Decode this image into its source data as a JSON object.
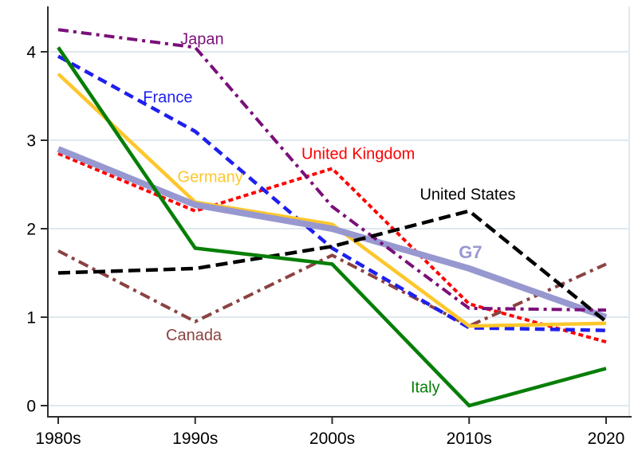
{
  "chart_data": {
    "type": "line",
    "title": "",
    "xlabel": "",
    "ylabel": "",
    "categories": [
      "1980s",
      "1990s",
      "2000s",
      "2010s",
      "2020"
    ],
    "yticks": [
      0,
      1,
      2,
      3,
      4
    ],
    "ylim": [
      0,
      4.5
    ],
    "grid": "horizontal-light-blue",
    "legend": "inline-series-labels",
    "gridline_color": "#dfe9ee",
    "axis_color": "#2e2e2e",
    "background_color": "#ffffff",
    "series": [
      {
        "name": "United Kingdom",
        "values": [
          2.85,
          2.2,
          2.68,
          1.15,
          0.72
        ],
        "color": "#fe0000",
        "dash": "shortdash",
        "width": 4,
        "label": {
          "x": 2.19,
          "y": 2.85,
          "bold": false,
          "size": 20
        }
      },
      {
        "name": "Canada",
        "values": [
          1.75,
          0.95,
          1.7,
          0.9,
          1.6
        ],
        "color": "#8b4242",
        "dash": "dashdot",
        "width": 4,
        "label": {
          "x": 0.99,
          "y": 0.8,
          "bold": false,
          "size": 20
        }
      },
      {
        "name": "France",
        "values": [
          3.95,
          3.1,
          1.78,
          0.88,
          0.85
        ],
        "color": "#1f1fee",
        "dash": "dash",
        "width": 4.5,
        "label": {
          "x": 0.8,
          "y": 3.49,
          "bold": false,
          "size": 20
        }
      },
      {
        "name": "Germany",
        "values": [
          3.75,
          2.3,
          2.05,
          0.9,
          0.93
        ],
        "color": "#fdc72c",
        "dash": "solid",
        "width": 4.5,
        "label": {
          "x": 1.11,
          "y": 2.59,
          "bold": false,
          "size": 20
        }
      },
      {
        "name": "G7",
        "values": [
          2.9,
          2.27,
          2.0,
          1.55,
          1.0
        ],
        "color": "#9898d0",
        "dash": "solid",
        "width": 8,
        "label": {
          "x": 3.01,
          "y": 1.73,
          "bold": true,
          "size": 22
        }
      },
      {
        "name": "Japan",
        "values": [
          4.25,
          4.05,
          2.25,
          1.1,
          1.08
        ],
        "color": "#7a0f7a",
        "dash": "dashdot",
        "width": 4,
        "label": {
          "x": 1.05,
          "y": 4.15,
          "bold": false,
          "size": 20
        }
      },
      {
        "name": "United States",
        "values": [
          1.5,
          1.55,
          1.8,
          2.2,
          0.95
        ],
        "color": "#000000",
        "dash": "longdash",
        "width": 4.5,
        "label": {
          "x": 2.99,
          "y": 2.39,
          "bold": false,
          "size": 20
        }
      },
      {
        "name": "Italy",
        "values": [
          4.05,
          1.78,
          1.6,
          0.0,
          0.42
        ],
        "color": "#067e06",
        "dash": "solid",
        "width": 4.5,
        "label": {
          "x": 2.68,
          "y": 0.21,
          "bold": false,
          "size": 20
        }
      }
    ]
  }
}
